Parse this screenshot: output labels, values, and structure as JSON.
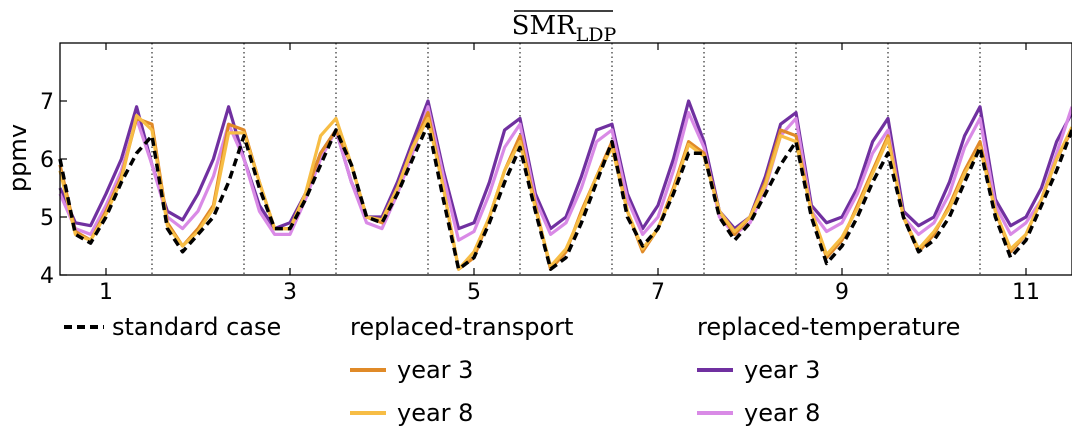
{
  "chart_data": {
    "type": "line",
    "title": "SMR",
    "title_subscript": "LDP",
    "title_overline": true,
    "xlabel": "",
    "ylabel": "ppmv",
    "xlim": [
      0.5,
      11.5
    ],
    "ylim": [
      4,
      8
    ],
    "xticks": [
      1,
      3,
      5,
      7,
      9,
      11
    ],
    "yticks": [
      4,
      5,
      6,
      7
    ],
    "year_boundaries": [
      1.5,
      2.5,
      3.5,
      4.5,
      5.5,
      6.5,
      7.5,
      8.5,
      9.5,
      10.5
    ],
    "grid": false,
    "legend_location": "below plot",
    "x": [
      0.5,
      0.667,
      0.833,
      1.0,
      1.167,
      1.333,
      1.5,
      1.667,
      1.833,
      2.0,
      2.167,
      2.333,
      2.5,
      2.667,
      2.833,
      3.0,
      3.167,
      3.333,
      3.5,
      3.667,
      3.833,
      4.0,
      4.167,
      4.333,
      4.5,
      4.667,
      4.833,
      5.0,
      5.167,
      5.333,
      5.5,
      5.667,
      5.833,
      6.0,
      6.167,
      6.333,
      6.5,
      6.667,
      6.833,
      7.0,
      7.167,
      7.333,
      7.5,
      7.667,
      7.833,
      8.0,
      8.167,
      8.333,
      8.5,
      8.667,
      8.833,
      9.0,
      9.167,
      9.333,
      9.5,
      9.667,
      9.833,
      10.0,
      10.167,
      10.333,
      10.5,
      10.667,
      10.833,
      11.0,
      11.167,
      11.333,
      11.5
    ],
    "series": [
      {
        "name": "standard case",
        "color": "#000000",
        "dash": true,
        "values": [
          6.0,
          4.7,
          4.55,
          5.0,
          5.6,
          6.1,
          6.4,
          4.8,
          4.4,
          4.7,
          5.0,
          5.6,
          6.4,
          5.5,
          4.8,
          4.8,
          5.3,
          5.9,
          6.5,
          5.9,
          5.0,
          4.9,
          5.4,
          6.0,
          6.6,
          5.3,
          4.1,
          4.3,
          4.9,
          5.6,
          6.2,
          5.1,
          4.1,
          4.3,
          4.9,
          5.6,
          6.3,
          5.0,
          4.5,
          4.8,
          5.4,
          6.1,
          6.1,
          5.0,
          4.6,
          4.9,
          5.4,
          5.9,
          6.3,
          5.0,
          4.2,
          4.5,
          5.0,
          5.6,
          6.1,
          5.0,
          4.4,
          4.6,
          5.0,
          5.6,
          6.2,
          5.0,
          4.3,
          4.6,
          5.2,
          5.8,
          6.5
        ]
      },
      {
        "name": "replaced-transport year 3",
        "color": "#e08a28",
        "dash": false,
        "values": [
          5.9,
          4.75,
          4.6,
          5.1,
          5.7,
          6.7,
          6.6,
          4.9,
          4.5,
          4.8,
          5.2,
          6.6,
          6.5,
          5.6,
          4.8,
          4.8,
          5.4,
          6.1,
          6.5,
          5.9,
          5.0,
          4.9,
          5.5,
          6.2,
          6.8,
          5.5,
          4.1,
          4.3,
          5.0,
          5.8,
          6.4,
          5.2,
          4.1,
          4.4,
          5.1,
          5.7,
          6.3,
          5.1,
          4.4,
          4.8,
          5.5,
          6.3,
          6.1,
          5.1,
          4.7,
          5.0,
          5.6,
          6.5,
          6.4,
          5.1,
          4.3,
          4.6,
          5.2,
          5.8,
          6.4,
          5.0,
          4.4,
          4.7,
          5.2,
          5.8,
          6.3,
          5.1,
          4.4,
          4.7,
          5.3,
          6.0,
          6.5
        ]
      },
      {
        "name": "replaced-transport year 8",
        "color": "#f7bd45",
        "dash": false,
        "values": [
          5.8,
          4.7,
          4.6,
          5.05,
          5.65,
          6.75,
          6.5,
          4.85,
          4.5,
          4.75,
          5.15,
          6.45,
          6.45,
          5.6,
          4.8,
          4.8,
          5.4,
          6.4,
          6.7,
          5.9,
          5.0,
          4.95,
          5.5,
          6.2,
          6.7,
          5.5,
          4.1,
          4.4,
          5.0,
          5.8,
          6.3,
          5.15,
          4.15,
          4.45,
          5.05,
          5.7,
          6.2,
          5.1,
          4.45,
          4.8,
          5.45,
          6.25,
          6.05,
          5.1,
          4.75,
          5.0,
          5.55,
          6.4,
          6.3,
          5.1,
          4.35,
          4.65,
          5.15,
          5.75,
          6.35,
          5.0,
          4.45,
          4.75,
          5.15,
          5.75,
          6.2,
          5.1,
          4.45,
          4.7,
          5.3,
          6.0,
          6.55
        ]
      },
      {
        "name": "replaced-temperature year 3",
        "color": "#7030a0",
        "dash": false,
        "values": [
          5.5,
          4.9,
          4.85,
          5.4,
          6.0,
          6.9,
          5.9,
          5.1,
          4.95,
          5.4,
          6.0,
          6.9,
          6.0,
          5.2,
          4.8,
          4.9,
          5.4,
          6.1,
          6.5,
          5.6,
          5.0,
          5.0,
          5.6,
          6.3,
          7.0,
          5.8,
          4.8,
          4.9,
          5.6,
          6.5,
          6.7,
          5.4,
          4.8,
          5.0,
          5.7,
          6.5,
          6.6,
          5.4,
          4.8,
          5.2,
          6.0,
          7.0,
          6.3,
          5.1,
          4.8,
          5.0,
          5.7,
          6.6,
          6.8,
          5.2,
          4.9,
          5.0,
          5.5,
          6.3,
          6.7,
          5.1,
          4.85,
          5.0,
          5.6,
          6.4,
          6.9,
          5.3,
          4.85,
          5.0,
          5.5,
          6.3,
          6.8
        ]
      },
      {
        "name": "replaced-temperature year 8",
        "color": "#d98ae6",
        "dash": false,
        "values": [
          5.4,
          4.8,
          4.7,
          5.2,
          5.8,
          6.7,
          5.9,
          5.0,
          4.8,
          5.1,
          5.7,
          6.6,
          6.0,
          5.1,
          4.7,
          4.7,
          5.3,
          6.0,
          6.5,
          5.6,
          4.9,
          4.8,
          5.4,
          6.1,
          6.9,
          5.7,
          4.6,
          4.75,
          5.4,
          6.2,
          6.6,
          5.3,
          4.7,
          4.9,
          5.5,
          6.3,
          6.5,
          5.3,
          4.7,
          5.0,
          5.8,
          6.8,
          6.2,
          5.0,
          4.7,
          4.9,
          5.5,
          6.4,
          6.7,
          5.1,
          4.75,
          4.9,
          5.4,
          6.1,
          6.5,
          5.0,
          4.7,
          4.9,
          5.4,
          6.2,
          6.7,
          5.2,
          4.7,
          4.9,
          5.3,
          6.1,
          6.9
        ]
      }
    ],
    "legend": {
      "standard_label": "standard case",
      "transport_header": "replaced-transport",
      "temperature_header": "replaced-temperature",
      "year3_label": "year 3",
      "year8_label": "year 8"
    }
  }
}
